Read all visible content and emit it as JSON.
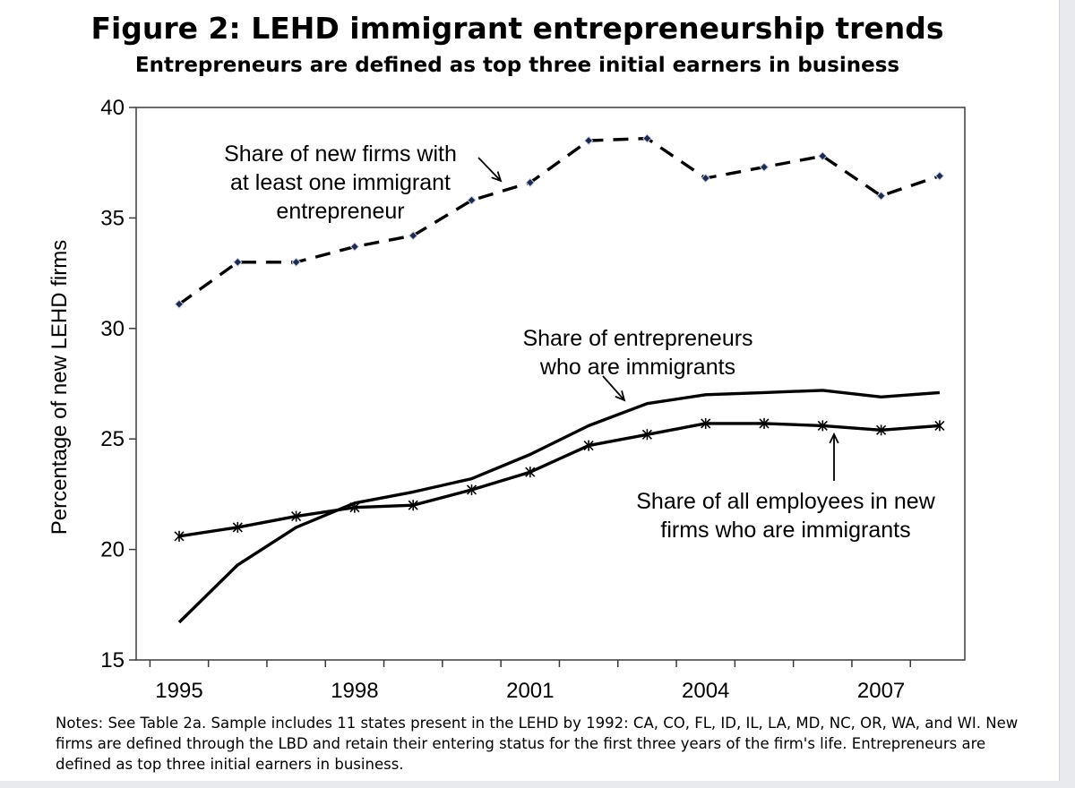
{
  "figure": {
    "title": "Figure 2: LEHD immigrant entrepreneurship trends",
    "subtitle": "Entrepreneurs are defined as top three initial earners in business",
    "notes": "Notes:  See Table 2a. Sample includes 11 states present in the LEHD by 1992: CA, CO, FL, ID, IL, LA, MD, NC, OR, WA, and WI. New firms are defined through the LBD and retain their entering status for the first three years of the firm's life. Entrepreneurs are defined as top three initial earners in business."
  },
  "chart_data": {
    "type": "line",
    "title": "Figure 2: LEHD immigrant entrepreneurship trends",
    "subtitle": "Entrepreneurs are defined as top three initial earners in business",
    "xlabel": "",
    "ylabel": "Percentage of new LEHD firms",
    "x": [
      1995,
      1996,
      1997,
      1998,
      1999,
      2000,
      2001,
      2002,
      2003,
      2004,
      2005,
      2006,
      2007,
      2008
    ],
    "xticks": [
      1995,
      1998,
      2001,
      2004,
      2007
    ],
    "xlim": [
      1995,
      2008.5
    ],
    "ylim": [
      15,
      40
    ],
    "yticks": [
      15,
      20,
      25,
      30,
      35,
      40
    ],
    "grid": false,
    "legend": "none",
    "series": [
      {
        "label_lines": [
          "Share of new firms with",
          "at least one immigrant",
          "entrepreneur"
        ],
        "style": "dashed-diamond",
        "values": [
          31.1,
          33.0,
          33.0,
          33.7,
          34.2,
          35.8,
          36.6,
          38.5,
          38.6,
          36.8,
          37.3,
          37.8,
          36.0,
          36.9
        ]
      },
      {
        "label_lines": [
          "Share of entrepreneurs",
          "who are immigrants"
        ],
        "style": "solid",
        "values": [
          16.7,
          19.3,
          21.0,
          22.1,
          22.6,
          23.2,
          24.3,
          25.6,
          26.6,
          27.0,
          27.1,
          27.2,
          26.9,
          27.1
        ]
      },
      {
        "label_lines": [
          "Share of all employees in new",
          "firms who are immigrants"
        ],
        "style": "solid-star",
        "values": [
          20.6,
          21.0,
          21.5,
          21.9,
          22.0,
          22.7,
          23.5,
          24.7,
          25.2,
          25.7,
          25.7,
          25.6,
          25.4,
          25.6
        ]
      }
    ]
  }
}
